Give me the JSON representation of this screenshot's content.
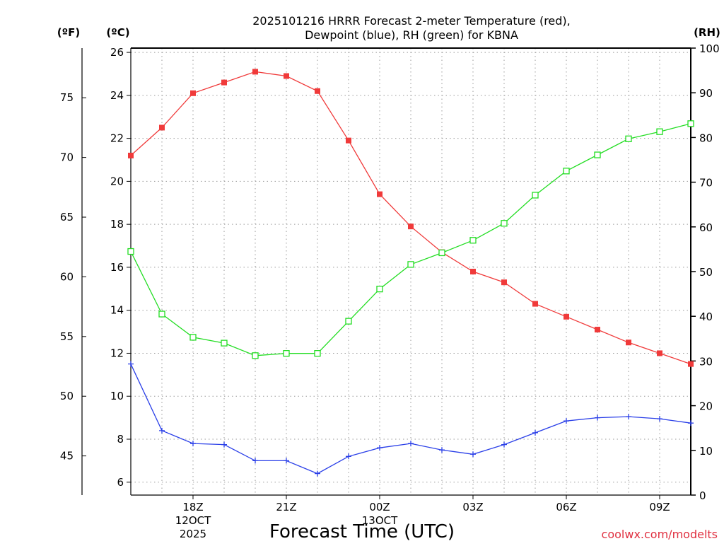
{
  "chart_data": {
    "type": "line",
    "title_lines": [
      "2025101216 HRRR Forecast 2-meter Temperature (red),",
      "Dewpoint (blue), RH (green) for KBNA"
    ],
    "xlabel": "Forecast Time (UTC)",
    "credit": "coolwx.com/modelts",
    "units": {
      "fahrenheit": "(ºF)",
      "celsius": "(ºC)",
      "rh": "(RH)"
    },
    "x_hours_from_start": [
      0,
      1,
      2,
      3,
      4,
      5,
      6,
      7,
      8,
      9,
      10,
      11,
      12,
      13,
      14,
      15,
      16,
      17,
      18
    ],
    "x_range": [
      0,
      18
    ],
    "x_ticks": [
      {
        "hour": 2,
        "label": "18Z",
        "sublabels": [
          "12OCT",
          "2025"
        ]
      },
      {
        "hour": 5,
        "label": "21Z",
        "sublabels": []
      },
      {
        "hour": 8,
        "label": "00Z",
        "sublabels": [
          "13OCT"
        ]
      },
      {
        "hour": 11,
        "label": "03Z",
        "sublabels": []
      },
      {
        "hour": 14,
        "label": "06Z",
        "sublabels": []
      },
      {
        "hour": 17,
        "label": "09Z",
        "sublabels": []
      }
    ],
    "y_celsius": {
      "range": [
        5.4,
        26.2
      ],
      "ticks": [
        6,
        8,
        10,
        12,
        14,
        16,
        18,
        20,
        22,
        24,
        26
      ]
    },
    "y_fahrenheit": {
      "ticks": [
        45,
        50,
        55,
        60,
        65,
        70,
        75
      ]
    },
    "y_rh": {
      "range": [
        0,
        100
      ],
      "ticks": [
        0,
        10,
        20,
        30,
        40,
        50,
        60,
        70,
        80,
        90,
        100
      ]
    },
    "series": [
      {
        "name": "Temperature",
        "axis": "celsius",
        "color": "#f03a3a",
        "marker": "filled-square",
        "values": [
          21.2,
          22.5,
          24.1,
          24.6,
          25.1,
          24.9,
          24.2,
          21.9,
          19.4,
          17.9,
          16.7,
          15.8,
          15.3,
          14.3,
          13.7,
          13.1,
          12.5,
          12.0,
          11.5
        ]
      },
      {
        "name": "Dewpoint",
        "axis": "celsius",
        "color": "#2a3fe8",
        "marker": "plus",
        "values": [
          11.5,
          8.4,
          7.8,
          7.75,
          7.0,
          7.0,
          6.4,
          7.2,
          7.6,
          7.8,
          7.5,
          7.3,
          7.75,
          8.3,
          8.85,
          9.0,
          9.05,
          8.95,
          8.75
        ]
      },
      {
        "name": "RH",
        "axis": "rh",
        "color": "#22dd22",
        "marker": "open-square",
        "values": [
          54.5,
          40.5,
          35.3,
          34.0,
          31.2,
          31.7,
          31.7,
          38.9,
          46.1,
          51.6,
          54.2,
          57.0,
          60.8,
          67.1,
          72.5,
          76.1,
          79.7,
          81.3,
          83.1
        ]
      }
    ]
  }
}
